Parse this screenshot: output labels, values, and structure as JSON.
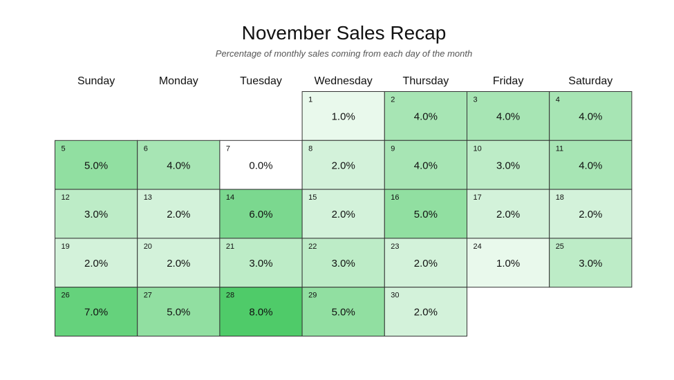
{
  "chart_data": {
    "type": "heatmap",
    "title": "November Sales Recap",
    "subtitle": "Percentage of monthly sales coming from each day of the month",
    "weekdays": [
      "Sunday",
      "Monday",
      "Tuesday",
      "Wednesday",
      "Thursday",
      "Friday",
      "Saturday"
    ],
    "first_weekday_index": 3,
    "days": [
      1,
      2,
      3,
      4,
      5,
      6,
      7,
      8,
      9,
      10,
      11,
      12,
      13,
      14,
      15,
      16,
      17,
      18,
      19,
      20,
      21,
      22,
      23,
      24,
      25,
      26,
      27,
      28,
      29,
      30
    ],
    "values": [
      1,
      4,
      4,
      4,
      5,
      4,
      0,
      2,
      4,
      3,
      4,
      3,
      2,
      6,
      2,
      5,
      2,
      2,
      2,
      2,
      3,
      3,
      2,
      1,
      3,
      7,
      5,
      8,
      5,
      2
    ],
    "value_labels": [
      "1.0%",
      "4.0%",
      "4.0%",
      "4.0%",
      "5.0%",
      "4.0%",
      "0.0%",
      "2.0%",
      "4.0%",
      "3.0%",
      "4.0%",
      "3.0%",
      "2.0%",
      "6.0%",
      "2.0%",
      "5.0%",
      "2.0%",
      "2.0%",
      "2.0%",
      "2.0%",
      "3.0%",
      "3.0%",
      "2.0%",
      "1.0%",
      "3.0%",
      "7.0%",
      "5.0%",
      "8.0%",
      "5.0%",
      "2.0%"
    ],
    "color_min": "#ffffff",
    "color_max": "#4fcb69",
    "value_range": [
      0,
      8
    ],
    "border_color": "#333333"
  }
}
